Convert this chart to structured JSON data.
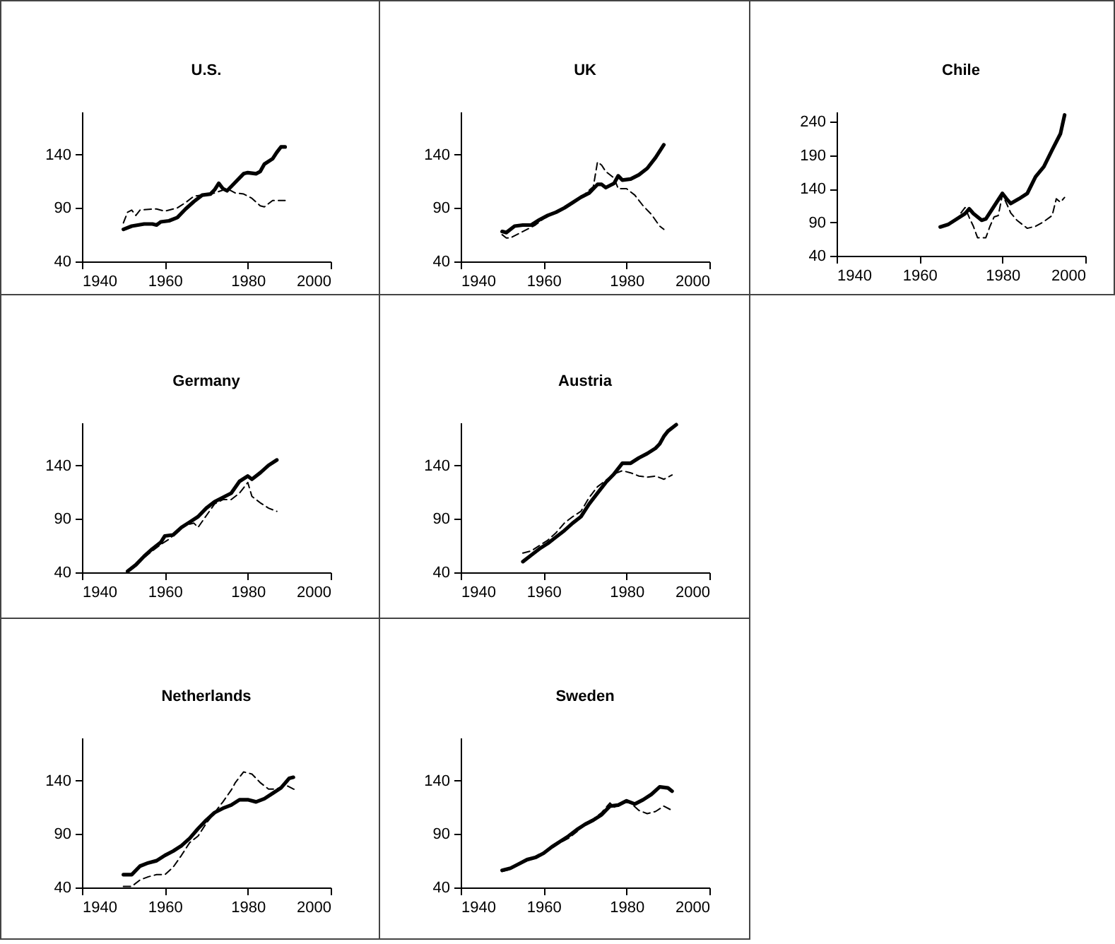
{
  "chart_data": [
    {
      "type": "line",
      "title": "U.S.",
      "xlim": [
        1940,
        2000
      ],
      "xticks": [
        1940,
        1960,
        1980,
        2000
      ],
      "ylim": [
        40,
        180
      ],
      "yticks": [
        40,
        90,
        140
      ],
      "series": [
        {
          "color": "#000000",
          "line_style": "solid",
          "x": [
            1950,
            1952,
            1955,
            1957,
            1958,
            1959,
            1961,
            1963,
            1965,
            1967,
            1969,
            1971,
            1972,
            1973,
            1974,
            1975,
            1976,
            1978,
            1979,
            1980,
            1982,
            1983,
            1984,
            1986,
            1987,
            1988,
            1989
          ],
          "values": [
            70,
            73,
            75,
            75,
            74,
            77,
            78,
            81,
            89,
            96,
            102,
            103,
            107,
            113,
            108,
            106,
            110,
            118,
            122,
            123,
            122,
            124,
            131,
            136,
            142,
            147,
            147
          ]
        },
        {
          "color": "#000000",
          "line_style": "dashed",
          "x": [
            1950,
            1951,
            1952,
            1953,
            1954,
            1957,
            1958,
            1960,
            1962,
            1963,
            1965,
            1967,
            1969,
            1972,
            1975,
            1977,
            1979,
            1981,
            1983,
            1984,
            1986,
            1989
          ],
          "values": [
            76,
            86,
            88,
            83,
            88,
            89,
            89,
            87,
            89,
            90,
            95,
            101,
            102,
            104,
            108,
            104,
            103,
            99,
            92,
            91,
            97,
            97
          ]
        }
      ]
    },
    {
      "type": "line",
      "title": "UK",
      "xlim": [
        1940,
        2000
      ],
      "xticks": [
        1940,
        1960,
        1980,
        2000
      ],
      "ylim": [
        40,
        180
      ],
      "yticks": [
        40,
        90,
        140
      ],
      "series": [
        {
          "color": "#000000",
          "line_style": "solid",
          "x": [
            1950,
            1951,
            1953,
            1955,
            1957,
            1959,
            1961,
            1963,
            1965,
            1967,
            1969,
            1971,
            1973,
            1974,
            1975,
            1977,
            1978,
            1979,
            1981,
            1983,
            1985,
            1987,
            1989
          ],
          "values": [
            68,
            67,
            73,
            74,
            74,
            79,
            83,
            86,
            90,
            95,
            100,
            104,
            112,
            112,
            109,
            113,
            120,
            116,
            117,
            121,
            127,
            137,
            149
          ]
        },
        {
          "color": "#000000",
          "line_style": "dashed",
          "x": [
            1950,
            1951,
            1952,
            1954,
            1956,
            1958,
            1960,
            1962,
            1964,
            1966,
            1968,
            1970,
            1972,
            1973,
            1974,
            1975,
            1977,
            1978,
            1980,
            1982,
            1984,
            1986,
            1988,
            1989
          ],
          "values": [
            65,
            62,
            62,
            66,
            70,
            74,
            80,
            84,
            88,
            92,
            98,
            103,
            110,
            133,
            130,
            124,
            118,
            108,
            108,
            102,
            92,
            84,
            73,
            70
          ]
        }
      ]
    },
    {
      "type": "line",
      "title": "Chile",
      "xlim": [
        1940,
        2000
      ],
      "xticks": [
        1940,
        1960,
        1980,
        2000
      ],
      "ylim": [
        40,
        255
      ],
      "yticks": [
        40,
        90,
        140,
        190,
        240
      ],
      "series": [
        {
          "color": "#000000",
          "line_style": "solid",
          "x": [
            1965,
            1967,
            1969,
            1971,
            1972,
            1973,
            1975,
            1976,
            1978,
            1980,
            1981,
            1982,
            1984,
            1986,
            1988,
            1990,
            1992,
            1994,
            1995
          ],
          "values": [
            83,
            87,
            95,
            103,
            110,
            103,
            93,
            95,
            114,
            133,
            125,
            118,
            125,
            133,
            158,
            173,
            198,
            222,
            250
          ]
        },
        {
          "color": "#000000",
          "line_style": "dashed",
          "x": [
            1970,
            1971,
            1972,
            1973,
            1974,
            1976,
            1977,
            1978,
            1979,
            1980,
            1981,
            1982,
            1983.5,
            1986,
            1988,
            1990,
            1992,
            1993,
            1994,
            1995
          ],
          "values": [
            104,
            112,
            97,
            84,
            67,
            67,
            84,
            98,
            100,
            131,
            118,
            104,
            93,
            81,
            84,
            91,
            100,
            125,
            120,
            127
          ]
        }
      ]
    },
    {
      "type": "line",
      "title": "Germany",
      "xlim": [
        1940,
        2000
      ],
      "xticks": [
        1940,
        1960,
        1980,
        2000
      ],
      "ylim": [
        40,
        180
      ],
      "yticks": [
        40,
        90,
        140
      ],
      "series": [
        {
          "color": "#000000",
          "line_style": "solid",
          "x": [
            1951,
            1953,
            1955,
            1957,
            1959,
            1960,
            1962,
            1964,
            1966,
            1968,
            1970,
            1972,
            1974,
            1976,
            1978,
            1980,
            1981,
            1983,
            1985,
            1987
          ],
          "values": [
            41,
            47,
            55,
            62,
            68,
            74,
            75,
            82,
            87,
            92,
            100,
            106,
            110,
            114,
            125,
            130,
            127,
            133,
            140,
            145
          ]
        },
        {
          "color": "#000000",
          "line_style": "dashed",
          "x": [
            1951,
            1953,
            1955,
            1957,
            1959,
            1961,
            1963,
            1965,
            1967,
            1968,
            1970,
            1972,
            1974,
            1976,
            1978,
            1980,
            1981,
            1983,
            1985,
            1987
          ],
          "values": [
            40,
            46,
            54,
            60,
            66,
            71,
            78,
            84,
            86,
            82,
            93,
            104,
            108,
            108,
            114,
            124,
            111,
            105,
            100,
            97
          ]
        }
      ]
    },
    {
      "type": "line",
      "title": "Austria",
      "xlim": [
        1940,
        2000
      ],
      "xticks": [
        1940,
        1960,
        1980,
        2000
      ],
      "ylim": [
        40,
        180
      ],
      "yticks": [
        40,
        90,
        140
      ],
      "series": [
        {
          "color": "#000000",
          "line_style": "solid",
          "x": [
            1955,
            1957,
            1959,
            1961,
            1963,
            1965,
            1967,
            1969,
            1971,
            1973,
            1975,
            1977,
            1979,
            1981,
            1983,
            1985,
            1987,
            1988,
            1989,
            1990,
            1992
          ],
          "values": [
            50,
            56,
            62,
            67,
            73,
            79,
            86,
            92,
            104,
            114,
            124,
            132,
            142,
            142,
            147,
            151,
            156,
            160,
            167,
            172,
            178
          ]
        },
        {
          "color": "#000000",
          "line_style": "dashed",
          "x": [
            1955,
            1957,
            1959,
            1961,
            1963,
            1965,
            1967,
            1969,
            1971,
            1973,
            1975,
            1977,
            1979,
            1981,
            1983,
            1985,
            1987,
            1989,
            1991
          ],
          "values": [
            58,
            60,
            65,
            70,
            77,
            86,
            92,
            97,
            110,
            120,
            126,
            132,
            135,
            133,
            130,
            129,
            130,
            127,
            131
          ]
        }
      ]
    },
    {
      "type": "line",
      "title": "Netherlands",
      "xlim": [
        1940,
        2000
      ],
      "xticks": [
        1940,
        1960,
        1980,
        2000
      ],
      "ylim": [
        40,
        180
      ],
      "yticks": [
        40,
        90,
        140
      ],
      "series": [
        {
          "color": "#000000",
          "line_style": "solid",
          "x": [
            1950,
            1952,
            1954,
            1956,
            1958,
            1960,
            1962,
            1964,
            1966,
            1968,
            1970,
            1972,
            1974,
            1976,
            1978,
            1980,
            1982,
            1984,
            1986,
            1988,
            1990,
            1991
          ],
          "values": [
            52,
            52,
            60,
            63,
            65,
            70,
            74,
            79,
            86,
            95,
            103,
            110,
            114,
            117,
            122,
            122,
            120,
            123,
            128,
            133,
            142,
            143
          ]
        },
        {
          "color": "#000000",
          "line_style": "dashed",
          "x": [
            1950,
            1952,
            1954,
            1956,
            1958,
            1960,
            1962,
            1964,
            1966,
            1968,
            1970,
            1972,
            1974,
            1976,
            1977,
            1979,
            1981,
            1983,
            1985,
            1987,
            1989,
            1991,
            1992
          ],
          "values": [
            41,
            41,
            47,
            50,
            52,
            52,
            59,
            70,
            82,
            88,
            100,
            110,
            120,
            131,
            138,
            148,
            146,
            138,
            132,
            132,
            136,
            132,
            131
          ]
        }
      ]
    },
    {
      "type": "line",
      "title": "Sweden",
      "xlim": [
        1940,
        2000
      ],
      "xticks": [
        1940,
        1960,
        1980,
        2000
      ],
      "ylim": [
        40,
        180
      ],
      "yticks": [
        40,
        90,
        140
      ],
      "series": [
        {
          "color": "#000000",
          "line_style": "solid",
          "x": [
            1950,
            1952,
            1954,
            1956,
            1958,
            1960,
            1962,
            1964,
            1966,
            1968,
            1970,
            1972,
            1974,
            1976,
            1978,
            1980,
            1982,
            1984,
            1986,
            1988,
            1990,
            1991
          ],
          "values": [
            56,
            58,
            62,
            66,
            68,
            72,
            78,
            83,
            88,
            94,
            99,
            103,
            108,
            116,
            117,
            121,
            118,
            122,
            127,
            134,
            133,
            130
          ]
        },
        {
          "color": "#000000",
          "line_style": "dashed",
          "x": [
            1950,
            1952,
            1954,
            1956,
            1958,
            1960,
            1962,
            1964,
            1966,
            1968,
            1970,
            1972,
            1974,
            1976,
            1977,
            1979,
            1981,
            1983,
            1985,
            1987,
            1989,
            1991
          ],
          "values": [
            55,
            57,
            62,
            65,
            68,
            72,
            77,
            82,
            86,
            92,
            100,
            104,
            110,
            119,
            115,
            120,
            119,
            112,
            109,
            111,
            116,
            112
          ]
        }
      ]
    }
  ]
}
